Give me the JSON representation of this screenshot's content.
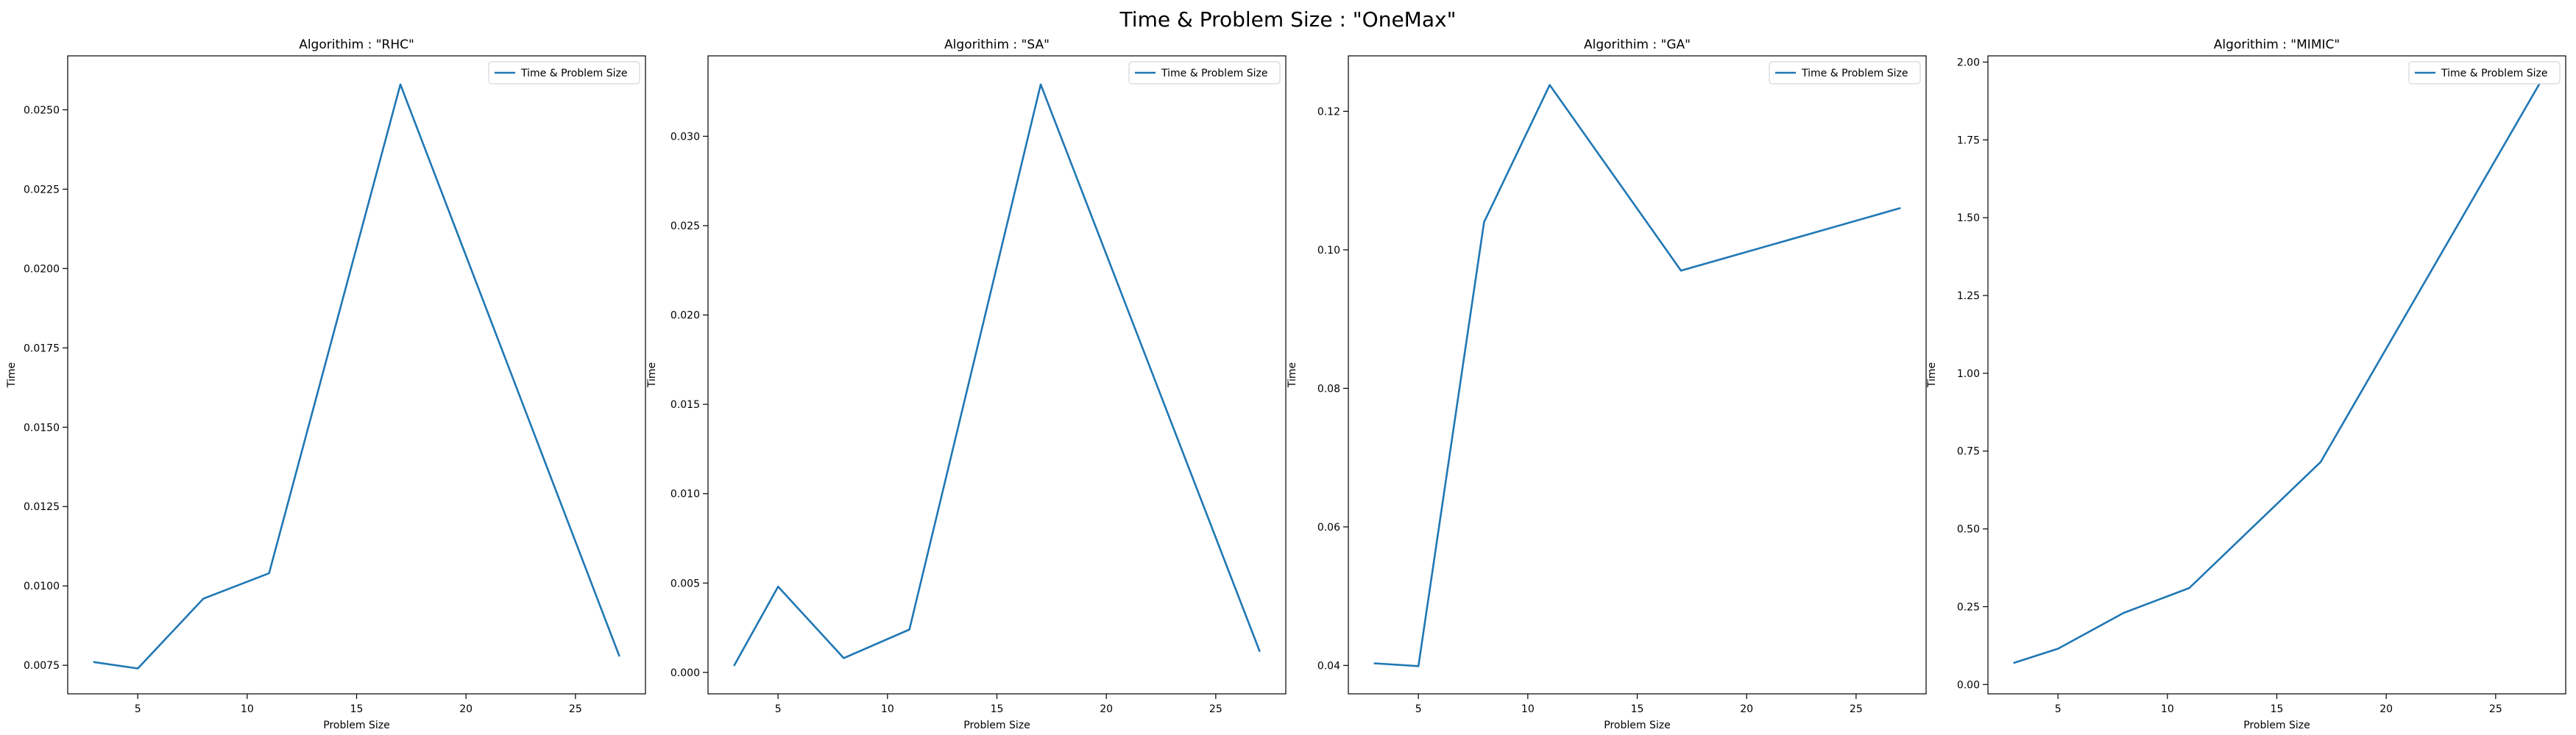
{
  "figure": {
    "title": "Time & Problem Size : \"OneMax\""
  },
  "colors": {
    "line": "#1f77b4",
    "axes": "#000000",
    "background": "#ffffff"
  },
  "chart_data": [
    {
      "type": "line",
      "title": "Algorithim : \"RHC\"",
      "xlabel": "Problem Size",
      "ylabel": "Time",
      "xlim": [
        1.8,
        28.2
      ],
      "ylim": [
        0.0066,
        0.0267
      ],
      "xticks": [
        5,
        10,
        15,
        20,
        25
      ],
      "xtick_labels": [
        "5",
        "10",
        "15",
        "20",
        "25"
      ],
      "yticks": [
        0.0075,
        0.01,
        0.0125,
        0.015,
        0.0175,
        0.02,
        0.0225,
        0.025
      ],
      "ytick_labels": [
        "0.0075",
        "0.0100",
        "0.0125",
        "0.0150",
        "0.0175",
        "0.0200",
        "0.0225",
        "0.0250"
      ],
      "grid": false,
      "legend": "upper right",
      "series": [
        {
          "name": "Time & Problem Size",
          "x": [
            3,
            5,
            8,
            11,
            17,
            27
          ],
          "y": [
            0.0076,
            0.0074,
            0.0096,
            0.0104,
            0.0258,
            0.0078
          ]
        }
      ]
    },
    {
      "type": "line",
      "title": "Algorithim : \"SA\"",
      "xlabel": "Problem Size",
      "ylabel": "Time",
      "xlim": [
        1.8,
        28.2
      ],
      "ylim": [
        -0.0012,
        0.0345
      ],
      "xticks": [
        5,
        10,
        15,
        20,
        25
      ],
      "xtick_labels": [
        "5",
        "10",
        "15",
        "20",
        "25"
      ],
      "yticks": [
        0.0,
        0.005,
        0.01,
        0.015,
        0.02,
        0.025,
        0.03
      ],
      "ytick_labels": [
        "0.000",
        "0.005",
        "0.010",
        "0.015",
        "0.020",
        "0.025",
        "0.030"
      ],
      "grid": false,
      "legend": "upper right",
      "series": [
        {
          "name": "Time & Problem Size",
          "x": [
            3,
            5,
            8,
            11,
            17,
            27
          ],
          "y": [
            0.0004,
            0.0048,
            0.0008,
            0.0024,
            0.0329,
            0.0012
          ]
        }
      ]
    },
    {
      "type": "line",
      "title": "Algorithim : \"GA\"",
      "xlabel": "Problem Size",
      "ylabel": "Time",
      "xlim": [
        1.8,
        28.2
      ],
      "ylim": [
        0.0359,
        0.128
      ],
      "xticks": [
        5,
        10,
        15,
        20,
        25
      ],
      "xtick_labels": [
        "5",
        "10",
        "15",
        "20",
        "25"
      ],
      "yticks": [
        0.04,
        0.06,
        0.08,
        0.1,
        0.12
      ],
      "ytick_labels": [
        "0.04",
        "0.06",
        "0.08",
        "0.10",
        "0.12"
      ],
      "grid": false,
      "legend": "upper right",
      "series": [
        {
          "name": "Time & Problem Size",
          "x": [
            3,
            5,
            8,
            11,
            17,
            27
          ],
          "y": [
            0.0403,
            0.0399,
            0.104,
            0.1238,
            0.097,
            0.106
          ]
        }
      ]
    },
    {
      "type": "line",
      "title": "Algorithim : \"MIMIC\"",
      "xlabel": "Problem Size",
      "ylabel": "Time",
      "xlim": [
        1.8,
        28.2
      ],
      "ylim": [
        -0.03,
        2.02
      ],
      "xticks": [
        5,
        10,
        15,
        20,
        25
      ],
      "xtick_labels": [
        "5",
        "10",
        "15",
        "20",
        "25"
      ],
      "yticks": [
        0.0,
        0.25,
        0.5,
        0.75,
        1.0,
        1.25,
        1.5,
        1.75,
        2.0
      ],
      "ytick_labels": [
        "0.00",
        "0.25",
        "0.50",
        "0.75",
        "1.00",
        "1.25",
        "1.50",
        "1.75",
        "2.00"
      ],
      "grid": false,
      "legend": "upper right",
      "series": [
        {
          "name": "Time & Problem Size",
          "x": [
            3,
            5,
            8,
            11,
            17,
            27
          ],
          "y": [
            0.07,
            0.115,
            0.23,
            0.31,
            0.715,
            1.93
          ]
        }
      ]
    }
  ]
}
